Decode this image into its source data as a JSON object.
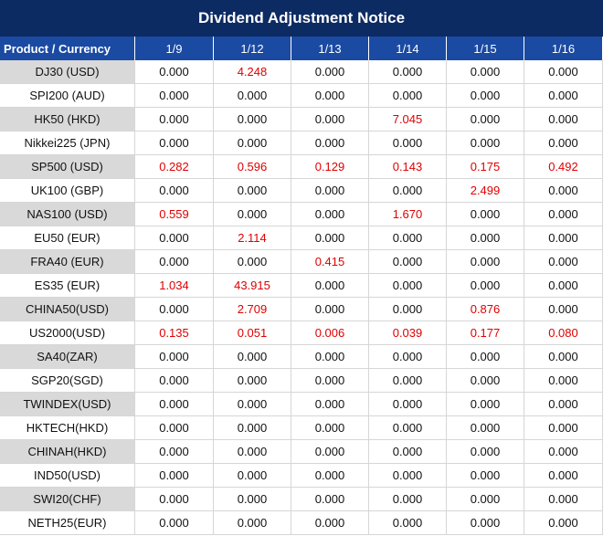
{
  "header": {
    "title": "Dividend Adjustment Notice"
  },
  "table": {
    "columns": [
      "Product / Currency",
      "1/9",
      "1/12",
      "1/13",
      "1/14",
      "1/15",
      "1/16"
    ],
    "rows": [
      [
        "DJ30 (USD)",
        "0.000",
        "4.248",
        "0.000",
        "0.000",
        "0.000",
        "0.000"
      ],
      [
        "SPI200 (AUD)",
        "0.000",
        "0.000",
        "0.000",
        "0.000",
        "0.000",
        "0.000"
      ],
      [
        "HK50 (HKD)",
        "0.000",
        "0.000",
        "0.000",
        "7.045",
        "0.000",
        "0.000"
      ],
      [
        "Nikkei225 (JPN)",
        "0.000",
        "0.000",
        "0.000",
        "0.000",
        "0.000",
        "0.000"
      ],
      [
        "SP500 (USD)",
        "0.282",
        "0.596",
        "0.129",
        "0.143",
        "0.175",
        "0.492"
      ],
      [
        "UK100 (GBP)",
        "0.000",
        "0.000",
        "0.000",
        "0.000",
        "2.499",
        "0.000"
      ],
      [
        "NAS100 (USD)",
        "0.559",
        "0.000",
        "0.000",
        "1.670",
        "0.000",
        "0.000"
      ],
      [
        "EU50 (EUR)",
        "0.000",
        "2.114",
        "0.000",
        "0.000",
        "0.000",
        "0.000"
      ],
      [
        "FRA40 (EUR)",
        "0.000",
        "0.000",
        "0.415",
        "0.000",
        "0.000",
        "0.000"
      ],
      [
        "ES35 (EUR)",
        "1.034",
        "43.915",
        "0.000",
        "0.000",
        "0.000",
        "0.000"
      ],
      [
        "CHINA50(USD)",
        "0.000",
        "2.709",
        "0.000",
        "0.000",
        "0.876",
        "0.000"
      ],
      [
        "US2000(USD)",
        "0.135",
        "0.051",
        "0.006",
        "0.039",
        "0.177",
        "0.080"
      ],
      [
        "SA40(ZAR)",
        "0.000",
        "0.000",
        "0.000",
        "0.000",
        "0.000",
        "0.000"
      ],
      [
        "SGP20(SGD)",
        "0.000",
        "0.000",
        "0.000",
        "0.000",
        "0.000",
        "0.000"
      ],
      [
        "TWINDEX(USD)",
        "0.000",
        "0.000",
        "0.000",
        "0.000",
        "0.000",
        "0.000"
      ],
      [
        "HKTECH(HKD)",
        "0.000",
        "0.000",
        "0.000",
        "0.000",
        "0.000",
        "0.000"
      ],
      [
        "CHINAH(HKD)",
        "0.000",
        "0.000",
        "0.000",
        "0.000",
        "0.000",
        "0.000"
      ],
      [
        "IND50(USD)",
        "0.000",
        "0.000",
        "0.000",
        "0.000",
        "0.000",
        "0.000"
      ],
      [
        "SWI20(CHF)",
        "0.000",
        "0.000",
        "0.000",
        "0.000",
        "0.000",
        "0.000"
      ],
      [
        "NETH25(EUR)",
        "0.000",
        "0.000",
        "0.000",
        "0.000",
        "0.000",
        "0.000"
      ]
    ]
  }
}
